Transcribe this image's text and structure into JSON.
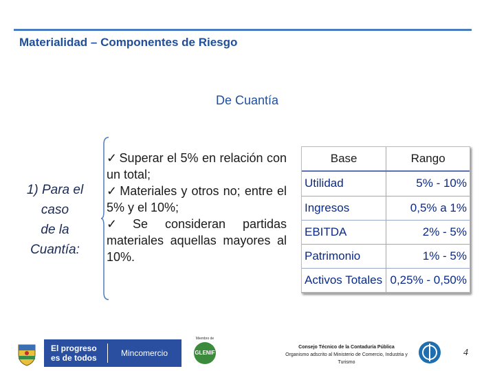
{
  "slide": {
    "title": "Materialidad – Componentes de Riesgo",
    "subtitle": "De Cuantía",
    "left_label_lines": [
      "1) Para el",
      "caso",
      "de la",
      "Cuantía:"
    ],
    "bullets": [
      "Superar el 5% en relación con un total;",
      "Materiales y otros no; entre el 5% y el 10%;",
      "Se consideran partidas materiales aquellas mayores al 10%."
    ],
    "check_glyph": "✓"
  },
  "table": {
    "headers": [
      "Base",
      "Rango"
    ],
    "rows": [
      {
        "base": "Utilidad",
        "rango": "5% - 10%"
      },
      {
        "base": "Ingresos",
        "rango": "0,5% a 1%"
      },
      {
        "base": "EBITDA",
        "rango": "2% - 5%"
      },
      {
        "base": "Patrimonio",
        "rango": "1% - 5%"
      },
      {
        "base": "Activos Totales",
        "rango": "0,25% - 0,50%"
      }
    ]
  },
  "footer": {
    "progreso_line1": "El progreso",
    "progreso_line2": "es de todos",
    "mincomercio": "Mincomercio",
    "glenif_small": "Miembro de",
    "glenif": "GLENIF",
    "consejo_line1": "Consejo Técnico de la Contaduría Pública",
    "consejo_line2": "Organismo adscrito al Ministerio de Comercio, Industria y Turismo",
    "page_number": "4"
  },
  "colors": {
    "accent": "#1f4e9a",
    "rule": "#4a7cc0",
    "table_text": "#0a2a8a",
    "footer_bar": "#2a4fa0"
  },
  "icons": {
    "shield": "colombia-shield-icon",
    "ctcp": "ctcp-logo-icon"
  }
}
